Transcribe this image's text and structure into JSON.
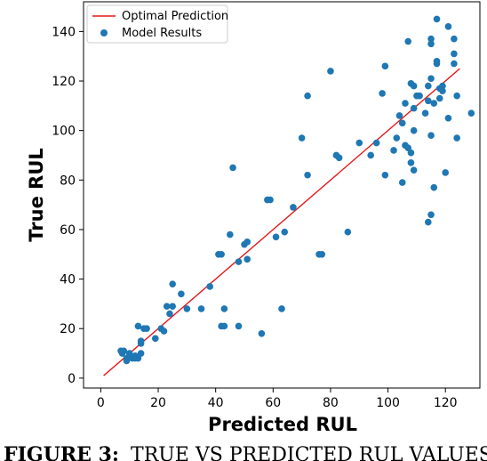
{
  "chart_data": {
    "type": "scatter",
    "xlabel": "Predicted RUL",
    "ylabel": "True RUL",
    "xlim": [
      -6,
      132
    ],
    "ylim": [
      -4,
      152
    ],
    "x_ticks": [
      0,
      20,
      40,
      60,
      80,
      100,
      120
    ],
    "y_ticks": [
      0,
      20,
      40,
      60,
      80,
      100,
      120,
      140
    ],
    "grid": false,
    "legend_position": "top-left",
    "series": [
      {
        "name": "Optimal Prediction",
        "kind": "line",
        "color": "#e41a1c",
        "points": [
          [
            1,
            1
          ],
          [
            125,
            125
          ]
        ]
      },
      {
        "name": "Model Results",
        "kind": "scatter",
        "color": "#1f77b4",
        "points": [
          [
            7,
            11
          ],
          [
            7.5,
            10
          ],
          [
            8,
            11
          ],
          [
            9,
            8
          ],
          [
            9,
            7
          ],
          [
            10,
            10
          ],
          [
            10,
            9
          ],
          [
            11,
            8
          ],
          [
            12,
            9
          ],
          [
            12,
            8
          ],
          [
            13,
            8
          ],
          [
            14,
            10
          ],
          [
            13,
            21
          ],
          [
            14,
            15
          ],
          [
            14,
            14
          ],
          [
            15,
            20
          ],
          [
            16,
            20
          ],
          [
            19,
            16
          ],
          [
            21,
            20
          ],
          [
            22,
            19
          ],
          [
            23,
            29
          ],
          [
            24,
            26
          ],
          [
            25,
            38
          ],
          [
            25,
            29
          ],
          [
            28,
            34
          ],
          [
            30,
            28
          ],
          [
            35,
            28
          ],
          [
            38,
            37
          ],
          [
            41,
            50
          ],
          [
            42,
            50
          ],
          [
            42,
            21
          ],
          [
            43,
            21
          ],
          [
            43,
            28
          ],
          [
            45,
            58
          ],
          [
            46,
            85
          ],
          [
            48,
            21
          ],
          [
            48,
            47
          ],
          [
            50,
            54
          ],
          [
            51,
            55
          ],
          [
            51,
            48
          ],
          [
            56,
            18
          ],
          [
            58,
            72
          ],
          [
            59,
            72
          ],
          [
            61,
            57
          ],
          [
            63,
            28
          ],
          [
            64,
            59
          ],
          [
            67,
            69
          ],
          [
            70,
            97
          ],
          [
            72,
            82
          ],
          [
            72,
            114
          ],
          [
            76,
            50
          ],
          [
            77,
            50
          ],
          [
            80,
            124
          ],
          [
            82,
            90
          ],
          [
            83,
            89
          ],
          [
            86,
            59
          ],
          [
            90,
            95
          ],
          [
            94,
            90
          ],
          [
            96,
            95
          ],
          [
            98,
            115
          ],
          [
            99,
            126
          ],
          [
            99,
            82
          ],
          [
            102,
            92
          ],
          [
            103,
            97
          ],
          [
            104,
            106
          ],
          [
            105,
            103
          ],
          [
            105,
            79
          ],
          [
            106,
            111
          ],
          [
            106,
            94
          ],
          [
            107,
            93
          ],
          [
            107,
            136
          ],
          [
            108,
            91
          ],
          [
            108,
            87
          ],
          [
            108,
            119
          ],
          [
            109,
            118
          ],
          [
            109,
            109
          ],
          [
            109,
            84
          ],
          [
            109,
            100
          ],
          [
            110,
            114
          ],
          [
            111,
            114
          ],
          [
            113,
            107
          ],
          [
            114,
            63
          ],
          [
            114,
            112
          ],
          [
            114,
            118
          ],
          [
            115,
            66
          ],
          [
            115,
            98
          ],
          [
            115,
            121
          ],
          [
            115,
            135
          ],
          [
            115,
            137
          ],
          [
            116,
            77
          ],
          [
            116,
            111
          ],
          [
            117,
            145
          ],
          [
            117,
            128
          ],
          [
            117,
            127
          ],
          [
            118,
            113
          ],
          [
            118,
            117
          ],
          [
            119,
            116
          ],
          [
            119,
            118
          ],
          [
            120,
            83
          ],
          [
            121,
            142
          ],
          [
            121,
            105
          ],
          [
            123,
            137
          ],
          [
            123,
            131
          ],
          [
            123,
            127
          ],
          [
            124,
            97
          ],
          [
            124,
            114
          ],
          [
            129,
            107
          ]
        ]
      }
    ]
  },
  "caption": {
    "label": "FIGURE 3:",
    "text": "TRUE VS PREDICTED RUL VALUES."
  }
}
